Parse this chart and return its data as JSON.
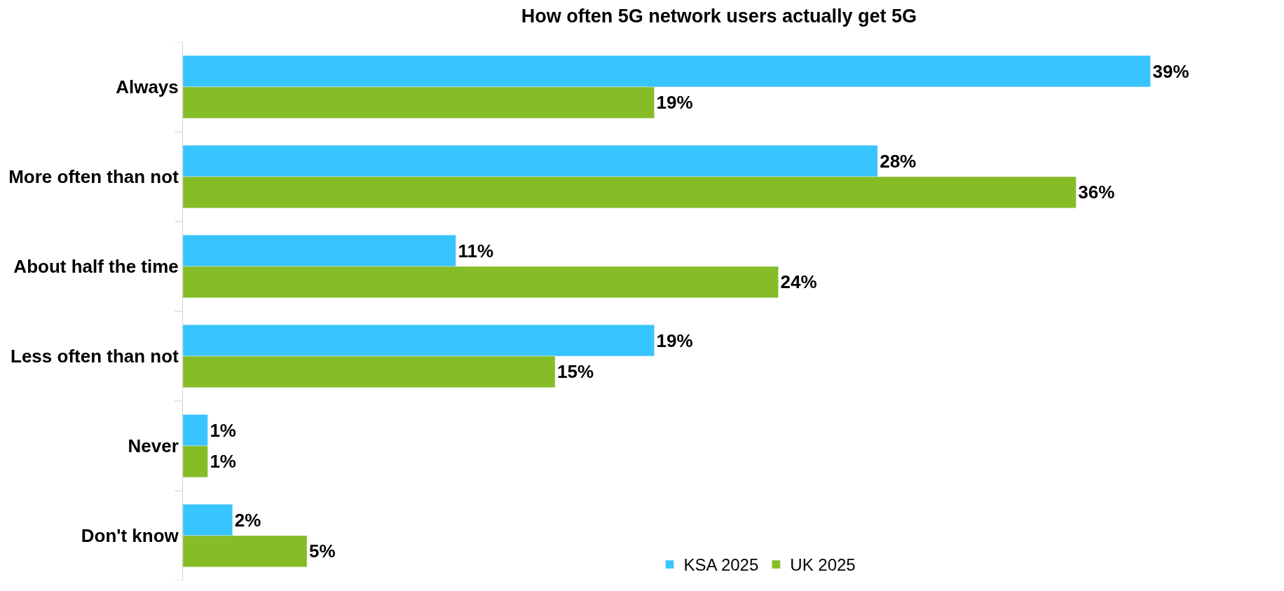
{
  "chart_data": {
    "type": "bar",
    "orientation": "horizontal",
    "title": "How often 5G network users actually get 5G",
    "categories": [
      "Always",
      "More often than not",
      "About half the time",
      "Less often than not",
      "Never",
      "Don't know"
    ],
    "series": [
      {
        "name": "KSA 2025",
        "color": "#38c4ff",
        "values": [
          39,
          28,
          11,
          19,
          1,
          2
        ],
        "value_labels": [
          "39%",
          "28%",
          "11%",
          "19%",
          "1%",
          "2%"
        ]
      },
      {
        "name": "UK 2025",
        "color": "#86bc25",
        "values": [
          19,
          36,
          24,
          15,
          1,
          5
        ],
        "value_labels": [
          "19%",
          "36%",
          "24%",
          "15%",
          "1%",
          "5%"
        ]
      }
    ],
    "legend": "bottom",
    "tick_labels": "y"
  }
}
